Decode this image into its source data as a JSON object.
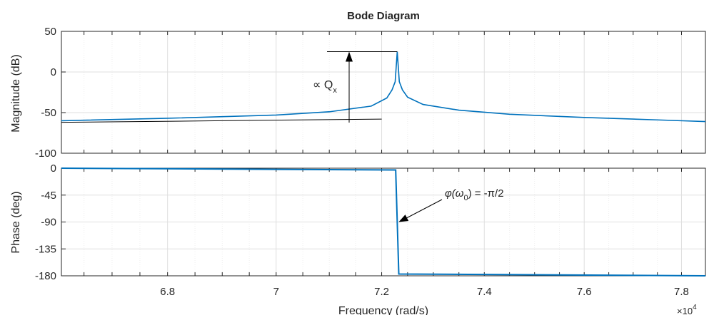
{
  "chart_data": {
    "type": "line",
    "title": "Bode Diagram",
    "x_scale": "log",
    "xlim": [
      66100,
      78500
    ],
    "xlabel": "Frequency  (rad/s)",
    "x_exponent_label": "×10",
    "x_exponent_power": "4",
    "x_ticks": [
      68000,
      70000,
      72000,
      74000,
      76000,
      78000
    ],
    "x_tick_labels": [
      "6.8",
      "7",
      "7.2",
      "7.4",
      "7.6",
      "7.8"
    ],
    "grid": true,
    "line_color": "#0072BD",
    "magnitude": {
      "ylabel": "Magnitude (dB)",
      "ylim": [
        -100,
        50
      ],
      "y_ticks": [
        50,
        0,
        -50,
        -100
      ],
      "y_tick_labels": [
        "50",
        "0",
        "-50",
        "-100"
      ],
      "resonance_frequency": 72300,
      "peak_db": 25,
      "series": [
        {
          "x": [
            66100,
            68000,
            70000,
            71000,
            71800,
            72100,
            72200,
            72260,
            72300,
            72340,
            72400,
            72500,
            72800,
            73500,
            74500,
            76000,
            77500,
            78500
          ],
          "y": [
            -60,
            -57,
            -53,
            -49,
            -42,
            -32,
            -22,
            -12,
            25,
            -12,
            -22,
            -31,
            -40,
            -47,
            -52,
            -56,
            -59,
            -61
          ]
        }
      ],
      "annotation": {
        "text": "∝ Q",
        "subscript": "x"
      },
      "reference_line": {
        "x": [
          66100,
          72000
        ],
        "y": [
          -62,
          -58
        ]
      }
    },
    "phase": {
      "ylabel": "Phase (deg)",
      "ylim": [
        -180,
        0
      ],
      "y_ticks": [
        0,
        -45,
        -90,
        -135,
        -180
      ],
      "y_tick_labels": [
        "0",
        "-45",
        "-90",
        "-135",
        "-180"
      ],
      "series": [
        {
          "x": [
            66100,
            72270,
            72300,
            72330,
            78500
          ],
          "y": [
            0,
            -3,
            -90,
            -177,
            -180
          ]
        }
      ],
      "annotation": {
        "phi": "φ(ω",
        "sub": "0",
        "rest": ") = -π/2",
        "target": [
          72300,
          -90
        ]
      }
    }
  }
}
